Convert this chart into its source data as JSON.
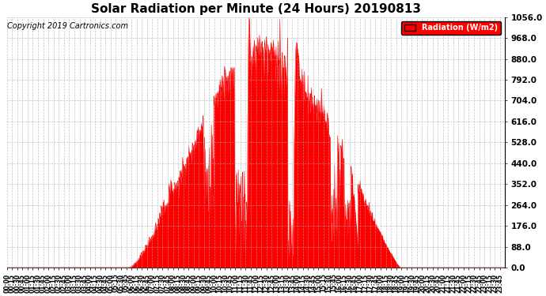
{
  "title": "Solar Radiation per Minute (24 Hours) 20190813",
  "copyright": "Copyright 2019 Cartronics.com",
  "legend_label": "Radiation (W/m2)",
  "ylim": [
    0.0,
    1056.0
  ],
  "yticks": [
    0.0,
    88.0,
    176.0,
    264.0,
    352.0,
    440.0,
    528.0,
    616.0,
    704.0,
    792.0,
    880.0,
    968.0,
    1056.0
  ],
  "bar_color": "#FF0000",
  "bg_color": "#FFFFFF",
  "grid_color": "#AAAAAA",
  "title_fontsize": 11,
  "tick_fontsize": 5.5,
  "copyright_fontsize": 7
}
